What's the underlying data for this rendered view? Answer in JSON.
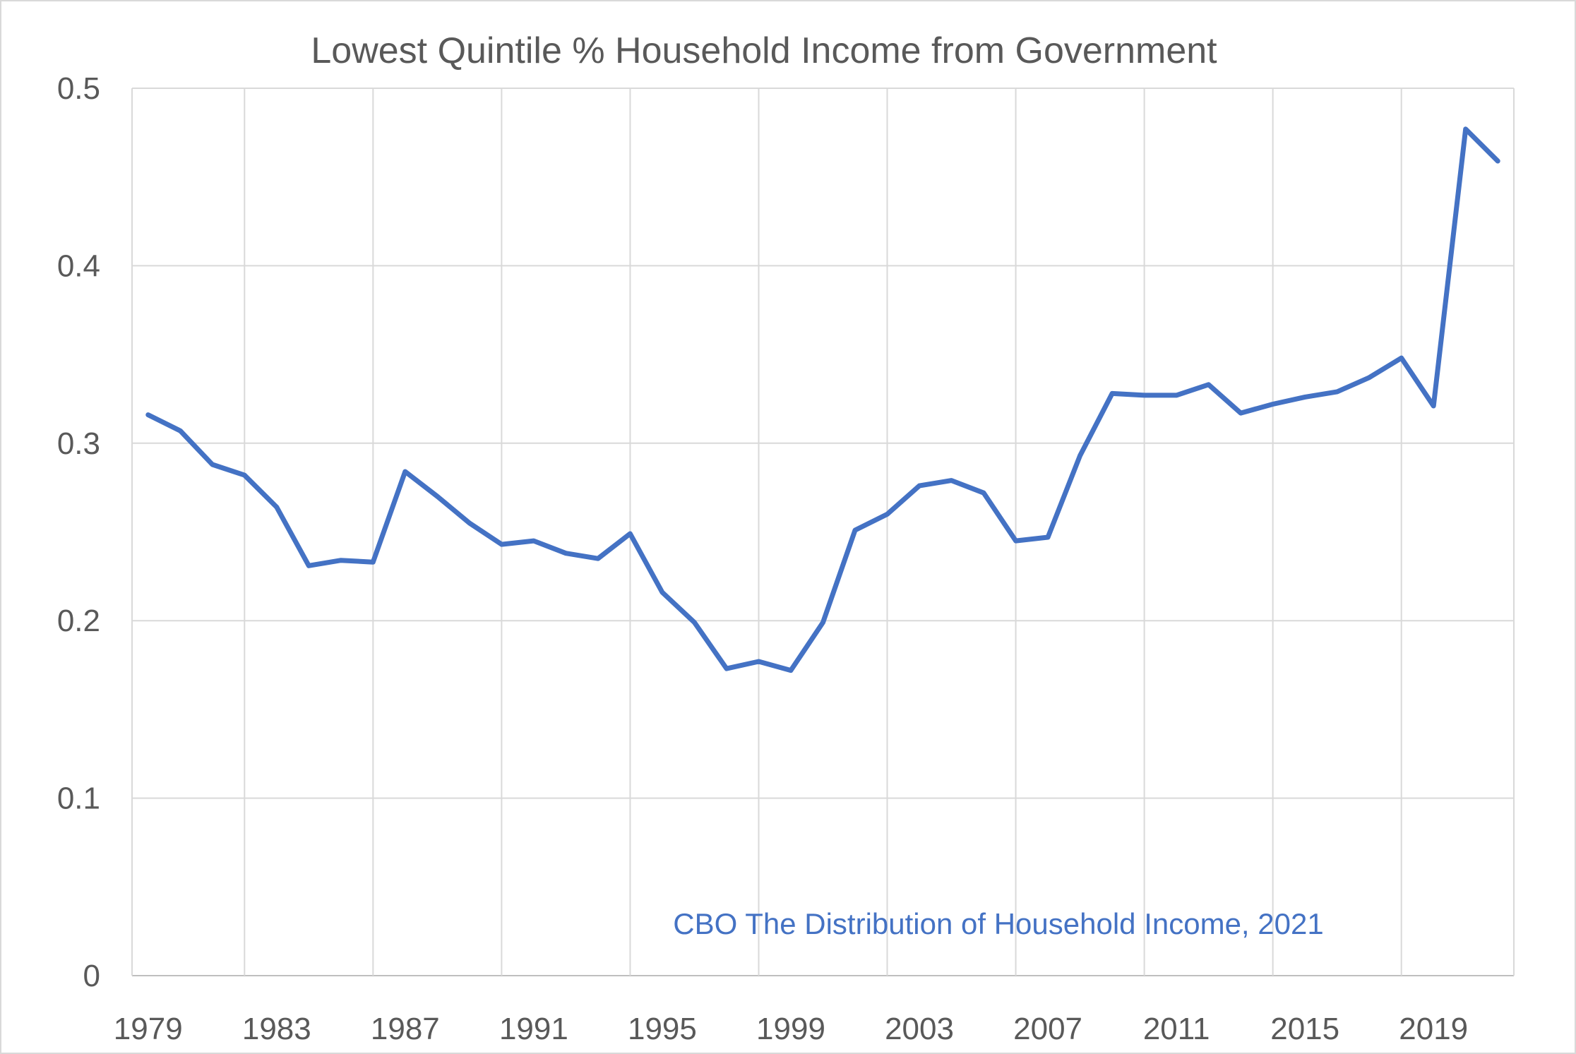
{
  "chart_data": {
    "type": "line",
    "title": "Lowest Quintile % Household Income from Government",
    "xlabel": "",
    "ylabel": "",
    "annotation": "CBO The Distribution of Household Income, 2021",
    "ylim": [
      0,
      0.5
    ],
    "y_ticks": [
      0,
      0.1,
      0.2,
      0.3,
      0.4,
      0.5
    ],
    "y_tick_labels": [
      "0",
      "0.1",
      "0.2",
      "0.3",
      "0.4",
      "0.5"
    ],
    "x_tick_labels": [
      "1979",
      "1983",
      "1987",
      "1991",
      "1995",
      "1999",
      "2003",
      "2007",
      "2011",
      "2015",
      "2019"
    ],
    "grid": true,
    "legend": "none",
    "colors": {
      "series": "#4472c4",
      "grid": "#d9d9d9",
      "text": "#595959"
    },
    "x": [
      1979,
      1980,
      1981,
      1982,
      1983,
      1984,
      1985,
      1986,
      1987,
      1988,
      1989,
      1990,
      1991,
      1992,
      1993,
      1994,
      1995,
      1996,
      1997,
      1998,
      1999,
      2000,
      2001,
      2002,
      2003,
      2004,
      2005,
      2006,
      2007,
      2008,
      2009,
      2010,
      2011,
      2012,
      2013,
      2014,
      2015,
      2016,
      2017,
      2018,
      2019,
      2020,
      2021
    ],
    "series": [
      {
        "values": [
          0.316,
          0.307,
          0.288,
          0.282,
          0.264,
          0.231,
          0.234,
          0.233,
          0.284,
          0.27,
          0.255,
          0.243,
          0.245,
          0.238,
          0.235,
          0.249,
          0.216,
          0.199,
          0.173,
          0.177,
          0.172,
          0.199,
          0.251,
          0.26,
          0.276,
          0.279,
          0.272,
          0.245,
          0.247,
          0.293,
          0.328,
          0.327,
          0.327,
          0.333,
          0.317,
          0.322,
          0.326,
          0.329,
          0.337,
          0.348,
          0.321,
          0.477,
          0.459
        ]
      }
    ]
  }
}
